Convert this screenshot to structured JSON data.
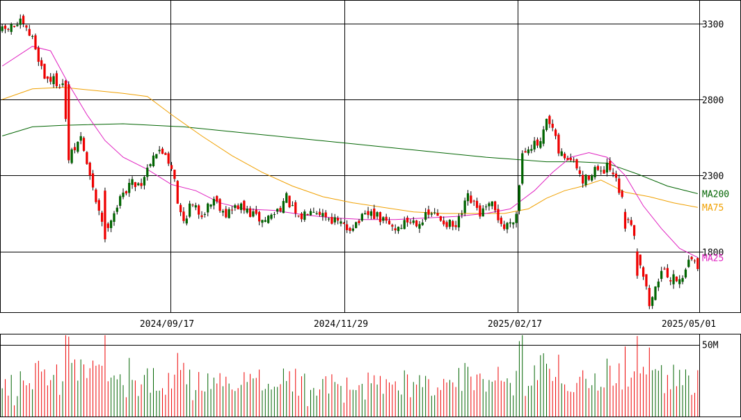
{
  "chart_data": {
    "type": "candlestick",
    "price_axis": {
      "ylim": [
        1400,
        3450
      ],
      "ticks": [
        1800,
        2300,
        2800,
        3300
      ],
      "tick_labels": [
        "1800",
        "2300",
        "2800",
        "3300"
      ]
    },
    "volume_axis": {
      "ylim": [
        0,
        58
      ],
      "ticks": [
        50
      ],
      "tick_labels": [
        "50M"
      ]
    },
    "date_axis": {
      "tick_labels": [
        "2024/09/17",
        "2024/11/29",
        "2025/02/17",
        "2025/05/01"
      ]
    },
    "legend": [
      {
        "label": "MA200",
        "color": "#006400"
      },
      {
        "label": "MA75",
        "color": "#f0a000"
      },
      {
        "label": "MA25",
        "color": "#e020c0"
      }
    ],
    "colors": {
      "up": "#006400",
      "down": "#ee0000",
      "grid": "#000000"
    },
    "anchors": [
      [
        0,
        3250
      ],
      [
        6,
        3300
      ],
      [
        10,
        3200
      ],
      [
        14,
        2950
      ],
      [
        20,
        2900
      ],
      [
        22,
        2400
      ],
      [
        26,
        2550
      ],
      [
        30,
        2200
      ],
      [
        34,
        1950
      ],
      [
        38,
        2100
      ],
      [
        42,
        2250
      ],
      [
        46,
        2250
      ],
      [
        50,
        2450
      ],
      [
        54,
        2450
      ],
      [
        57,
        2300
      ],
      [
        58,
        2100
      ],
      [
        60,
        2000
      ],
      [
        62,
        2100
      ],
      [
        66,
        2050
      ],
      [
        70,
        2150
      ],
      [
        74,
        2050
      ],
      [
        78,
        2100
      ],
      [
        82,
        2050
      ],
      [
        86,
        2000
      ],
      [
        90,
        2050
      ],
      [
        94,
        2150
      ],
      [
        98,
        2000
      ],
      [
        102,
        2100
      ],
      [
        106,
        2050
      ],
      [
        110,
        2000
      ],
      [
        114,
        1950
      ],
      [
        118,
        2000
      ],
      [
        122,
        2050
      ],
      [
        126,
        2000
      ],
      [
        130,
        1950
      ],
      [
        134,
        2000
      ],
      [
        138,
        2000
      ],
      [
        142,
        2050
      ],
      [
        146,
        2000
      ],
      [
        150,
        1950
      ],
      [
        154,
        2150
      ],
      [
        158,
        2050
      ],
      [
        162,
        2100
      ],
      [
        166,
        1950
      ],
      [
        170,
        2050
      ],
      [
        172,
        2450
      ],
      [
        174,
        2500
      ],
      [
        178,
        2500
      ],
      [
        180,
        2650
      ],
      [
        182,
        2600
      ],
      [
        184,
        2450
      ],
      [
        188,
        2400
      ],
      [
        190,
        2350
      ],
      [
        192,
        2250
      ],
      [
        196,
        2350
      ],
      [
        198,
        2300
      ],
      [
        200,
        2350
      ],
      [
        202,
        2300
      ],
      [
        204,
        2200
      ],
      [
        206,
        2050
      ],
      [
        208,
        2000
      ],
      [
        210,
        1800
      ],
      [
        212,
        1650
      ],
      [
        214,
        1450
      ],
      [
        216,
        1550
      ],
      [
        218,
        1700
      ],
      [
        220,
        1600
      ],
      [
        222,
        1650
      ],
      [
        224,
        1600
      ],
      [
        226,
        1700
      ],
      [
        228,
        1750
      ],
      [
        230,
        1700
      ]
    ],
    "moving_averages": {
      "MA25": [
        [
          0,
          3020
        ],
        [
          10,
          3150
        ],
        [
          16,
          3120
        ],
        [
          22,
          2900
        ],
        [
          28,
          2700
        ],
        [
          34,
          2530
        ],
        [
          40,
          2420
        ],
        [
          48,
          2340
        ],
        [
          56,
          2240
        ],
        [
          64,
          2200
        ],
        [
          72,
          2120
        ],
        [
          80,
          2080
        ],
        [
          90,
          2070
        ],
        [
          100,
          2040
        ],
        [
          110,
          2020
        ],
        [
          120,
          2010
        ],
        [
          130,
          2010
        ],
        [
          140,
          2020
        ],
        [
          150,
          2030
        ],
        [
          160,
          2050
        ],
        [
          168,
          2080
        ],
        [
          176,
          2200
        ],
        [
          182,
          2320
        ],
        [
          188,
          2420
        ],
        [
          194,
          2450
        ],
        [
          200,
          2420
        ],
        [
          206,
          2300
        ],
        [
          212,
          2100
        ],
        [
          218,
          1950
        ],
        [
          224,
          1820
        ],
        [
          230,
          1760
        ]
      ],
      "MA75": [
        [
          0,
          2800
        ],
        [
          10,
          2870
        ],
        [
          20,
          2880
        ],
        [
          30,
          2860
        ],
        [
          40,
          2840
        ],
        [
          48,
          2820
        ],
        [
          56,
          2700
        ],
        [
          66,
          2560
        ],
        [
          76,
          2430
        ],
        [
          86,
          2320
        ],
        [
          96,
          2230
        ],
        [
          106,
          2160
        ],
        [
          116,
          2120
        ],
        [
          126,
          2090
        ],
        [
          136,
          2060
        ],
        [
          146,
          2050
        ],
        [
          156,
          2050
        ],
        [
          166,
          2050
        ],
        [
          174,
          2080
        ],
        [
          180,
          2150
        ],
        [
          186,
          2200
        ],
        [
          192,
          2230
        ],
        [
          198,
          2270
        ],
        [
          206,
          2190
        ],
        [
          214,
          2160
        ],
        [
          222,
          2120
        ],
        [
          230,
          2090
        ]
      ],
      "MA200": [
        [
          0,
          2560
        ],
        [
          10,
          2620
        ],
        [
          20,
          2630
        ],
        [
          40,
          2640
        ],
        [
          60,
          2620
        ],
        [
          80,
          2580
        ],
        [
          100,
          2540
        ],
        [
          120,
          2500
        ],
        [
          140,
          2460
        ],
        [
          160,
          2420
        ],
        [
          180,
          2390
        ],
        [
          190,
          2390
        ],
        [
          200,
          2380
        ],
        [
          210,
          2310
        ],
        [
          220,
          2230
        ],
        [
          230,
          2180
        ]
      ]
    }
  }
}
